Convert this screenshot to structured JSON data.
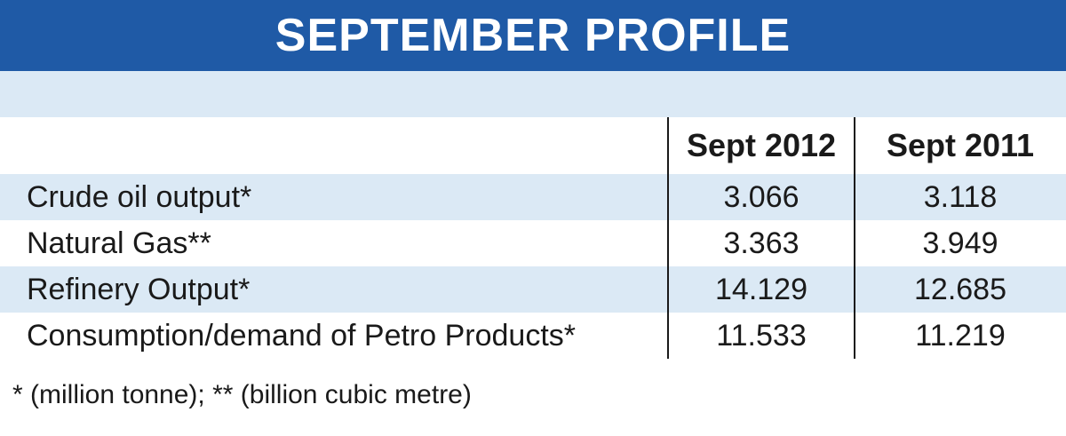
{
  "title": "SEPTEMBER PROFILE",
  "columns": [
    "Sept 2012",
    "Sept 2011"
  ],
  "rows": [
    {
      "label": "Crude oil output*",
      "values": [
        "3.066",
        "3.118"
      ]
    },
    {
      "label": "Natural Gas**",
      "values": [
        "3.363",
        "3.949"
      ]
    },
    {
      "label": "Refinery Output*",
      "values": [
        "14.129",
        "12.685"
      ]
    },
    {
      "label": "Consumption/demand of Petro Products*",
      "values": [
        "11.533",
        "11.219"
      ]
    }
  ],
  "footnote": "* (million tonne); ** (billion cubic metre)",
  "colors": {
    "header_bg": "#1f5aa6",
    "band_bg": "#dbe9f5",
    "text": "#1a1a1a"
  }
}
